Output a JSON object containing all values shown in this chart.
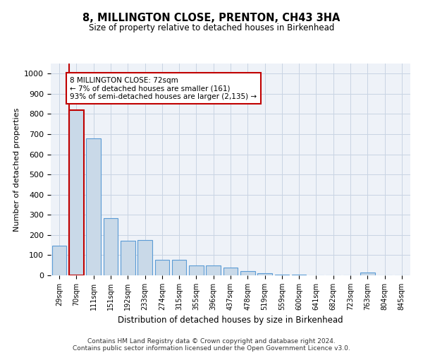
{
  "title": "8, MILLINGTON CLOSE, PRENTON, CH43 3HA",
  "subtitle": "Size of property relative to detached houses in Birkenhead",
  "xlabel": "Distribution of detached houses by size in Birkenhead",
  "ylabel": "Number of detached properties",
  "categories": [
    "29sqm",
    "70sqm",
    "111sqm",
    "151sqm",
    "192sqm",
    "233sqm",
    "274sqm",
    "315sqm",
    "355sqm",
    "396sqm",
    "437sqm",
    "478sqm",
    "519sqm",
    "559sqm",
    "600sqm",
    "641sqm",
    "682sqm",
    "723sqm",
    "763sqm",
    "804sqm",
    "845sqm"
  ],
  "values": [
    148,
    820,
    680,
    282,
    173,
    175,
    78,
    78,
    50,
    50,
    40,
    22,
    12,
    5,
    5,
    0,
    0,
    0,
    15,
    0,
    0
  ],
  "bar_color": "#c9d9e8",
  "bar_edge_color": "#5b9bd5",
  "highlight_bar_index": 1,
  "highlight_edge_color": "#c00000",
  "annotation_text": "8 MILLINGTON CLOSE: 72sqm\n← 7% of detached houses are smaller (161)\n93% of semi-detached houses are larger (2,135) →",
  "annotation_box_edge_color": "#c00000",
  "ylim": [
    0,
    1050
  ],
  "yticks": [
    0,
    100,
    200,
    300,
    400,
    500,
    600,
    700,
    800,
    900,
    1000
  ],
  "grid_color": "#c8d4e3",
  "footnote1": "Contains HM Land Registry data © Crown copyright and database right 2024.",
  "footnote2": "Contains public sector information licensed under the Open Government Licence v3.0.",
  "background_color": "#eef2f8"
}
